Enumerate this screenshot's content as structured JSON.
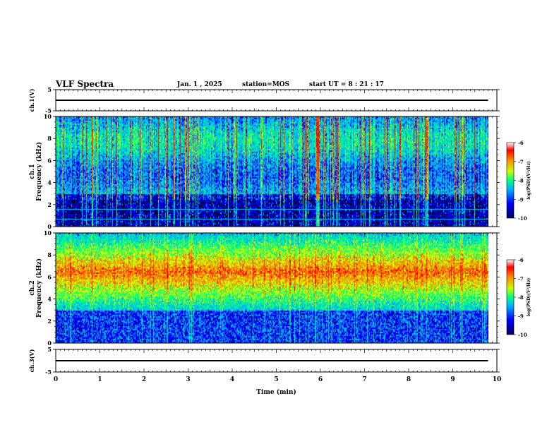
{
  "header": {
    "title": "VLF Spectra",
    "date": "Jan. 1 , 2025",
    "station": "station=MOS",
    "start_ut": "start UT =  8 : 21 : 17"
  },
  "colors": {
    "colormap": [
      "#000060",
      "#0000ff",
      "#00b0ff",
      "#00ff80",
      "#c8ff00",
      "#ff8000",
      "#ff0000",
      "#ffffff"
    ],
    "trace": "#000000",
    "background": "#000000"
  },
  "chart_data": [
    {
      "id": "ch1-voltage",
      "type": "line",
      "ylabel": "ch.1(V)",
      "ylim": [
        -5,
        5
      ],
      "yticks": [
        "5",
        "-5"
      ],
      "x": [
        0,
        9.8
      ],
      "y": [
        0,
        0
      ]
    },
    {
      "id": "ch1-spectrogram",
      "type": "heatmap",
      "ylabel_top": "ch.1",
      "ylabel": "Frequency (kHz)",
      "ylim": [
        0,
        10
      ],
      "yticks": [
        "0",
        "2",
        "4",
        "6",
        "8",
        "10"
      ],
      "x_extent": [
        0,
        9.8
      ],
      "colorbar": {
        "label": "log(PSD)(V²/Hz)",
        "range": [
          -10,
          -6
        ],
        "ticks": [
          "-6",
          "-7",
          "-8",
          "-9",
          "-10"
        ]
      },
      "lines_khz": [
        0.7,
        1.6
      ]
    },
    {
      "id": "ch2-spectrogram",
      "type": "heatmap",
      "ylabel_top": "ch.2",
      "ylabel": "Frequency (kHz)",
      "ylim": [
        0,
        10
      ],
      "yticks": [
        "0",
        "2",
        "4",
        "6",
        "8",
        "10"
      ],
      "x_extent": [
        0,
        9.8
      ],
      "colorbar": {
        "label": "log(PSD)(V²/Hz)",
        "range": [
          -10,
          -6
        ],
        "ticks": [
          "-6",
          "-7",
          "-8",
          "-9",
          "-10"
        ]
      },
      "band_center_khz": 6.5
    },
    {
      "id": "ch3-voltage",
      "type": "line",
      "ylabel": "ch.3(V)",
      "ylim": [
        -5,
        5
      ],
      "yticks": [
        "5",
        "-5"
      ],
      "x": [
        0,
        9.8
      ],
      "y": [
        0,
        0
      ]
    }
  ],
  "xaxis": {
    "label": "Time (min)",
    "ticks": [
      "0",
      "1",
      "2",
      "3",
      "4",
      "5",
      "6",
      "7",
      "8",
      "9",
      "10"
    ],
    "range": [
      0,
      10
    ]
  }
}
